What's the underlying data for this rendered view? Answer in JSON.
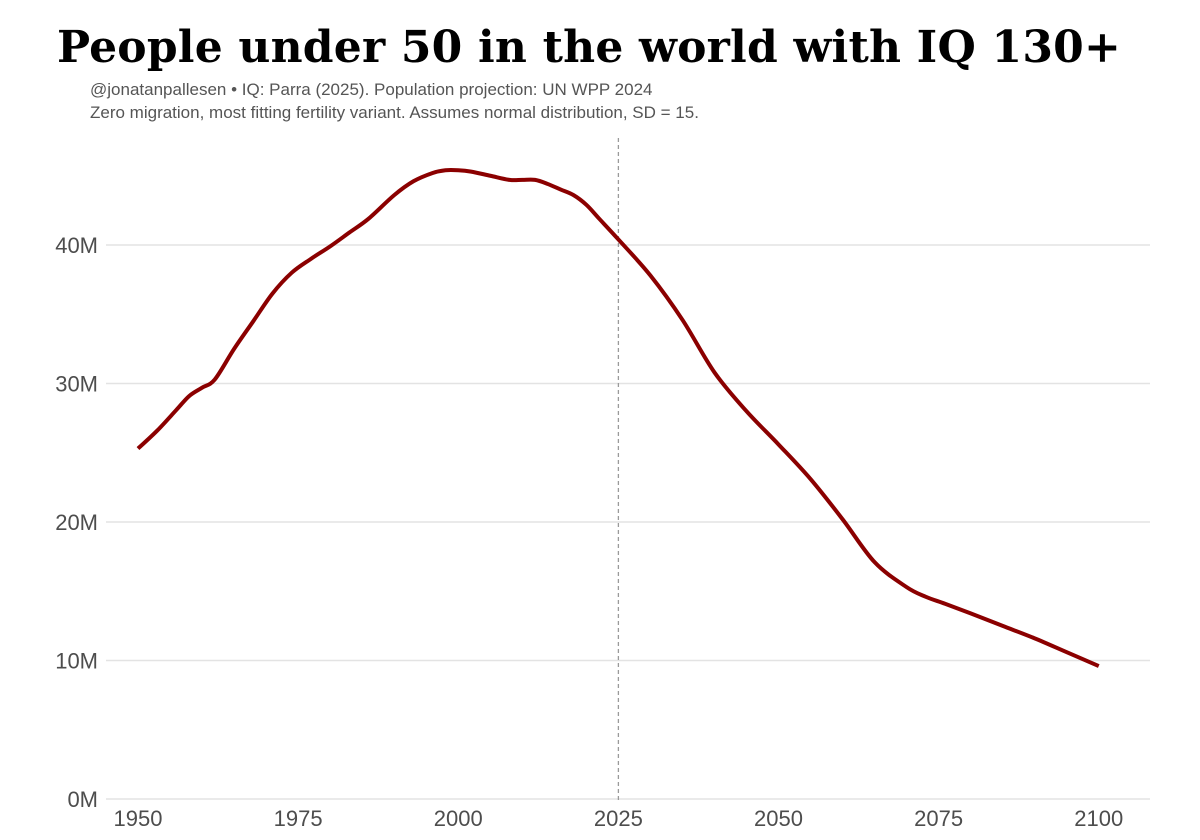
{
  "chart_data": {
    "type": "line",
    "title": "People under 50 in the world with IQ 130+",
    "subtitle_lines": [
      "@jonatanpallesen • IQ: Parra (2025). Population projection: UN WPP 2024",
      "Zero migration, most fitting fertility variant. Assumes normal distribution, SD = 15."
    ],
    "xlabel": "",
    "ylabel": "",
    "xlim": [
      1945,
      2108
    ],
    "ylim": [
      0,
      48
    ],
    "x_ticks": [
      1950,
      1975,
      2000,
      2025,
      2050,
      2075,
      2100
    ],
    "y_ticks": [
      0,
      10,
      20,
      30,
      40
    ],
    "y_tick_labels": [
      "0M",
      "10M",
      "20M",
      "30M",
      "40M"
    ],
    "reference_line": {
      "x": 2025,
      "style": "dashed"
    },
    "grid": "horizontal",
    "line_color": "#8b0000",
    "series": [
      {
        "name": "People under 50 with IQ 130+ (millions)",
        "x": [
          1950,
          1953,
          1956,
          1958,
          1960,
          1962,
          1965,
          1968,
          1971,
          1974,
          1977,
          1980,
          1983,
          1986,
          1990,
          1993,
          1996,
          1998,
          2000,
          2002,
          2005,
          2008,
          2010,
          2012,
          2014,
          2016,
          2018,
          2020,
          2022,
          2025,
          2030,
          2035,
          2040,
          2045,
          2050,
          2055,
          2060,
          2065,
          2070,
          2073,
          2076,
          2080,
          2085,
          2090,
          2095,
          2100
        ],
        "values": [
          25.3,
          26.6,
          28.1,
          29.1,
          29.7,
          30.3,
          32.5,
          34.5,
          36.5,
          38.0,
          39.0,
          39.9,
          40.9,
          41.9,
          43.6,
          44.6,
          45.2,
          45.4,
          45.4,
          45.3,
          45.0,
          44.7,
          44.7,
          44.7,
          44.4,
          44.0,
          43.6,
          42.9,
          41.9,
          40.4,
          37.8,
          34.6,
          30.8,
          28.0,
          25.6,
          23.1,
          20.2,
          17.1,
          15.3,
          14.6,
          14.1,
          13.4,
          12.5,
          11.6,
          10.6,
          9.6
        ]
      }
    ]
  }
}
